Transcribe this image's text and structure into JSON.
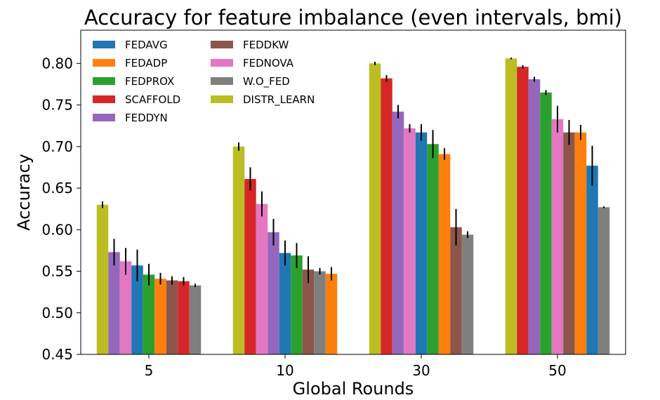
{
  "chart_data": {
    "type": "bar",
    "title": "Accuracy for feature imbalance (even intervals, bmi)",
    "xlabel": "Global Rounds",
    "ylabel": "Accuracy",
    "ylim": [
      0.45,
      0.84
    ],
    "yticks": [
      0.45,
      0.5,
      0.55,
      0.6,
      0.65,
      0.7,
      0.75,
      0.8
    ],
    "ytick_labels": [
      "0.45",
      "0.50",
      "0.55",
      "0.60",
      "0.65",
      "0.70",
      "0.75",
      "0.80"
    ],
    "categories": [
      "5",
      "10",
      "30",
      "50"
    ],
    "grid": false,
    "legend_position": "top-left",
    "legend": [
      {
        "name": "FEDAVG",
        "color": "#1f77b4"
      },
      {
        "name": "FEDADP",
        "color": "#ff7f0e"
      },
      {
        "name": "FEDPROX",
        "color": "#2ca02c"
      },
      {
        "name": "SCAFFOLD",
        "color": "#d62728"
      },
      {
        "name": "FEDDYN",
        "color": "#9467bd"
      },
      {
        "name": "FEDDKW",
        "color": "#8c564b"
      },
      {
        "name": "FEDNOVA",
        "color": "#e377c2"
      },
      {
        "name": "W.O_FED",
        "color": "#7f7f7f"
      },
      {
        "name": "DISTR_LEARN",
        "color": "#bcbd22"
      }
    ],
    "groups": [
      {
        "category": "5",
        "bars": [
          {
            "series": "DISTR_LEARN",
            "value": 0.63,
            "err": 0.004
          },
          {
            "series": "FEDDYN",
            "value": 0.573,
            "err": 0.016
          },
          {
            "series": "FEDNOVA",
            "value": 0.562,
            "err": 0.016
          },
          {
            "series": "FEDAVG",
            "value": 0.557,
            "err": 0.019
          },
          {
            "series": "FEDPROX",
            "value": 0.546,
            "err": 0.013
          },
          {
            "series": "FEDADP",
            "value": 0.541,
            "err": 0.007
          },
          {
            "series": "FEDDKW",
            "value": 0.539,
            "err": 0.005
          },
          {
            "series": "SCAFFOLD",
            "value": 0.538,
            "err": 0.005
          },
          {
            "series": "W.O_FED",
            "value": 0.533,
            "err": 0.002
          }
        ]
      },
      {
        "category": "10",
        "bars": [
          {
            "series": "DISTR_LEARN",
            "value": 0.7,
            "err": 0.005
          },
          {
            "series": "SCAFFOLD",
            "value": 0.661,
            "err": 0.014
          },
          {
            "series": "FEDNOVA",
            "value": 0.631,
            "err": 0.015
          },
          {
            "series": "FEDDYN",
            "value": 0.597,
            "err": 0.016
          },
          {
            "series": "FEDAVG",
            "value": 0.572,
            "err": 0.015
          },
          {
            "series": "FEDPROX",
            "value": 0.569,
            "err": 0.015
          },
          {
            "series": "FEDDKW",
            "value": 0.552,
            "err": 0.016
          },
          {
            "series": "W.O_FED",
            "value": 0.55,
            "err": 0.004
          },
          {
            "series": "FEDADP",
            "value": 0.547,
            "err": 0.008
          }
        ]
      },
      {
        "category": "30",
        "bars": [
          {
            "series": "DISTR_LEARN",
            "value": 0.8,
            "err": 0.002
          },
          {
            "series": "SCAFFOLD",
            "value": 0.782,
            "err": 0.004
          },
          {
            "series": "FEDDYN",
            "value": 0.742,
            "err": 0.008
          },
          {
            "series": "FEDNOVA",
            "value": 0.722,
            "err": 0.005
          },
          {
            "series": "FEDAVG",
            "value": 0.717,
            "err": 0.01
          },
          {
            "series": "FEDPROX",
            "value": 0.703,
            "err": 0.017
          },
          {
            "series": "FEDADP",
            "value": 0.691,
            "err": 0.007
          },
          {
            "series": "FEDDKW",
            "value": 0.603,
            "err": 0.022
          },
          {
            "series": "W.O_FED",
            "value": 0.594,
            "err": 0.004
          }
        ]
      },
      {
        "category": "50",
        "bars": [
          {
            "series": "DISTR_LEARN",
            "value": 0.806,
            "err": 0.001
          },
          {
            "series": "SCAFFOLD",
            "value": 0.796,
            "err": 0.002
          },
          {
            "series": "FEDDYN",
            "value": 0.781,
            "err": 0.003
          },
          {
            "series": "FEDPROX",
            "value": 0.765,
            "err": 0.003
          },
          {
            "series": "FEDNOVA",
            "value": 0.733,
            "err": 0.016
          },
          {
            "series": "FEDDKW",
            "value": 0.717,
            "err": 0.015
          },
          {
            "series": "FEDADP",
            "value": 0.717,
            "err": 0.009
          },
          {
            "series": "FEDAVG",
            "value": 0.677,
            "err": 0.024
          },
          {
            "series": "W.O_FED",
            "value": 0.627,
            "err": 0.001
          }
        ]
      }
    ]
  }
}
